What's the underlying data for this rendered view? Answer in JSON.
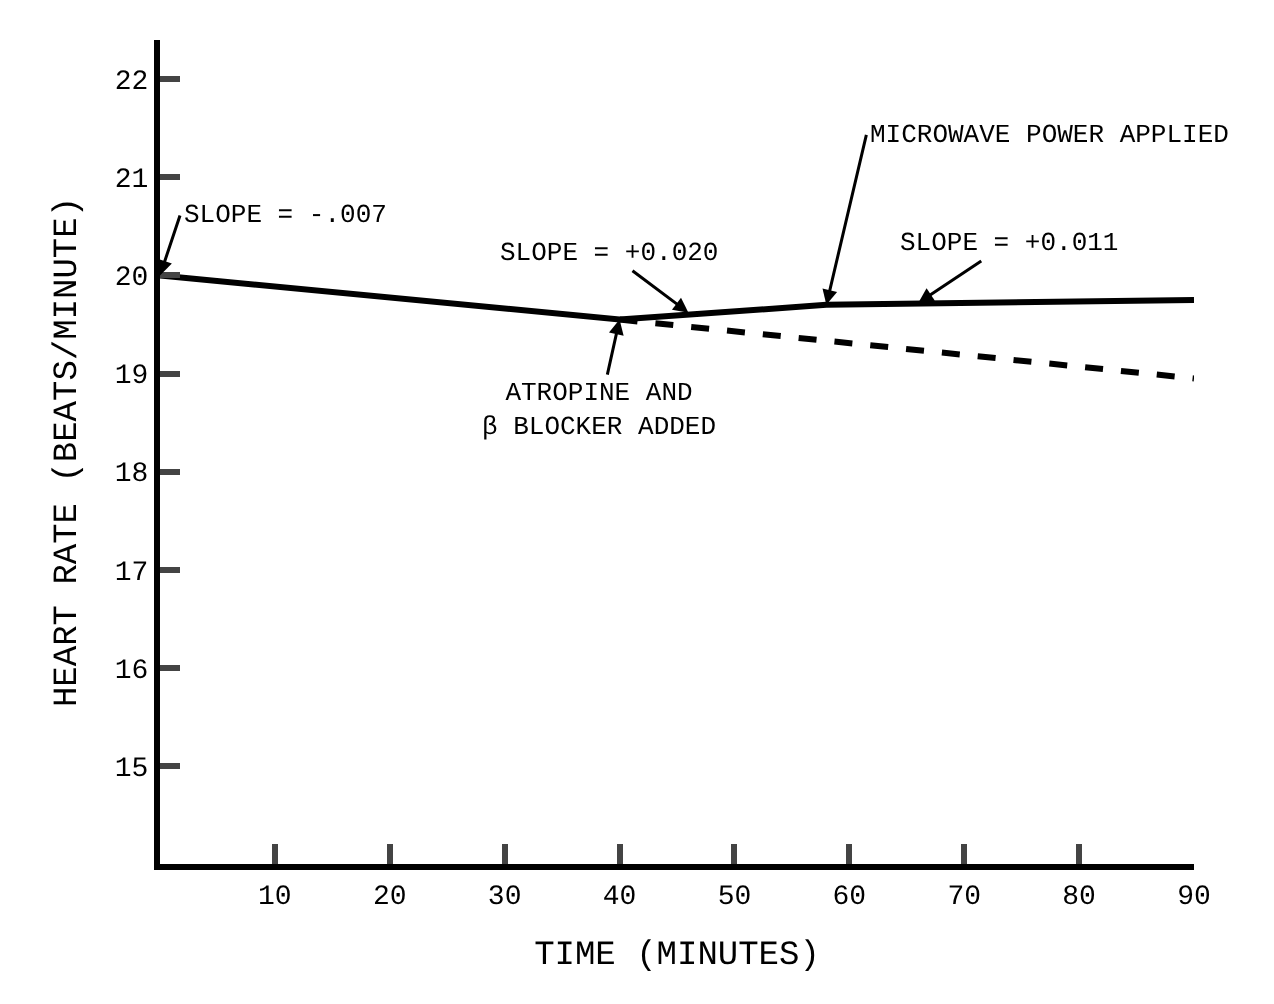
{
  "chart_data": {
    "type": "line",
    "xlabel": "TIME (MINUTES)",
    "ylabel": "HEART RATE (BEATS/MINUTE)",
    "series": [
      {
        "color": "#000000",
        "line_style": "solid",
        "x": [
          0,
          40,
          58,
          90
        ],
        "values": [
          20.0,
          19.55,
          19.7,
          19.75
        ]
      },
      {
        "color": "#000000",
        "line_style": "dashed",
        "x": [
          40,
          90
        ],
        "values": [
          19.55,
          18.95
        ]
      }
    ],
    "xlim": [
      0,
      90
    ],
    "xticks": [
      10,
      20,
      30,
      40,
      50,
      60,
      70,
      80,
      90
    ],
    "ylim": [
      14,
      22.4
    ],
    "yticks": [
      15,
      16,
      17,
      18,
      19,
      20,
      21,
      22
    ],
    "marker": "none",
    "annotations": [
      {
        "text": "SLOPE = -.007",
        "x": 0,
        "y": 20.0
      },
      {
        "text": "SLOPE = +0.020",
        "x": 46,
        "y": 19.62
      },
      {
        "text": "SLOPE = +0.011",
        "x": 66,
        "y": 19.72
      },
      {
        "text": "MICROWAVE POWER APPLIED",
        "x": 58,
        "y": 19.7
      },
      {
        "text": "ATROPINE AND\nβ BLOCKER ADDED",
        "x": 40,
        "y": 19.55
      }
    ]
  }
}
